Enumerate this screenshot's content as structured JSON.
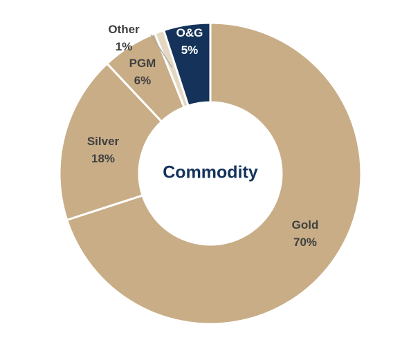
{
  "chart_data": {
    "type": "pie",
    "donut": true,
    "center_label": "Commodity",
    "slices": [
      {
        "label": "Gold",
        "value": 70,
        "value_label": "70%",
        "color": "#c8ad86"
      },
      {
        "label": "Silver",
        "value": 18,
        "value_label": "18%",
        "color": "#c8ad86"
      },
      {
        "label": "PGM",
        "value": 6,
        "value_label": "6%",
        "color": "#c8ad86"
      },
      {
        "label": "Other",
        "value": 1,
        "value_label": "1%",
        "color": "#e4d8c2"
      },
      {
        "label": "O&G",
        "value": 5,
        "value_label": "5%",
        "color": "#14325a"
      }
    ],
    "colors": {
      "dark_text": "#404040",
      "light_text": "#ffffff",
      "title_text": "#14325a",
      "separator": "#ffffff"
    }
  }
}
